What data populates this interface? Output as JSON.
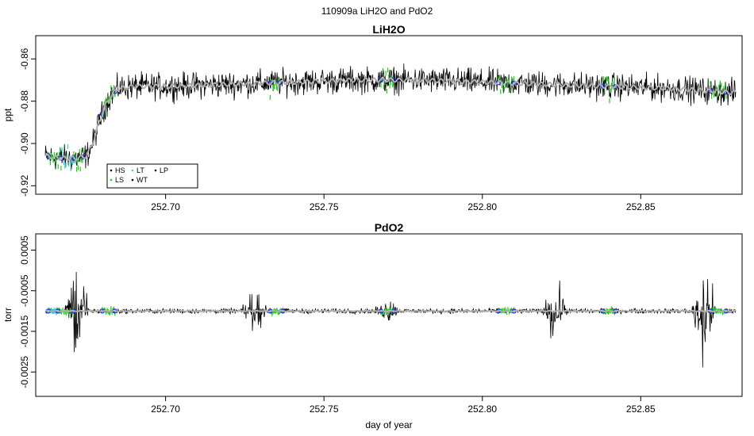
{
  "figure": {
    "title": "110909a   LiH2O and PdO2",
    "xlabel": "day of year"
  },
  "colors": {
    "HS": "#000000",
    "LS": "#22cc22",
    "LT": "#33cccc",
    "WT": "#000000",
    "LP": "#000000",
    "trace": "#000000",
    "smooth": "#b0b0b0",
    "blue_marker": "#2222dd"
  },
  "chart_data": [
    {
      "type": "line",
      "title": "LiH2O",
      "ylabel": "ppt",
      "xlim": [
        252.659,
        252.882
      ],
      "ylim": [
        -0.924,
        -0.849
      ],
      "x_ticks": [
        252.7,
        252.75,
        252.8,
        252.85
      ],
      "x_tick_labels": [
        "252.70",
        "252.75",
        "252.80",
        "252.85"
      ],
      "y_ticks": [
        -0.86,
        -0.88,
        -0.9,
        -0.92
      ],
      "y_tick_labels": [
        "-0.86",
        "-0.88",
        "-0.90",
        "-0.92"
      ],
      "legend": {
        "position": "bottom-left",
        "entries": [
          "HS",
          "LT",
          "LP",
          "LS",
          "WT"
        ]
      },
      "series": [
        {
          "name": "",
          "x": [
            252.662,
            252.667,
            252.672,
            252.675,
            252.677,
            252.679,
            252.681,
            252.683,
            252.685,
            252.69,
            252.7,
            252.72,
            252.74,
            252.76,
            252.77,
            252.78,
            252.8,
            252.82,
            252.84,
            252.86,
            252.87,
            252.88
          ],
          "y": [
            -0.906,
            -0.907,
            -0.907,
            -0.906,
            -0.9,
            -0.89,
            -0.882,
            -0.877,
            -0.874,
            -0.873,
            -0.873,
            -0.872,
            -0.871,
            -0.87,
            -0.87,
            -0.87,
            -0.871,
            -0.872,
            -0.873,
            -0.874,
            -0.875,
            -0.876
          ],
          "noise": 0.006
        }
      ],
      "marker_segments": [
        {
          "label": "LS",
          "x": [
            252.663,
            252.667
          ]
        },
        {
          "label": "LT",
          "x": [
            252.667,
            252.671
          ]
        },
        {
          "label": "LS",
          "x": [
            252.671,
            252.674
          ]
        },
        {
          "label": "LS",
          "x": [
            252.68,
            252.684
          ]
        },
        {
          "label": "LS",
          "x": [
            252.733,
            252.736
          ]
        },
        {
          "label": "LS",
          "x": [
            252.768,
            252.772
          ]
        },
        {
          "label": "LS",
          "x": [
            252.805,
            252.81
          ]
        },
        {
          "label": "LS",
          "x": [
            252.838,
            252.842
          ]
        },
        {
          "label": "LS",
          "x": [
            252.872,
            252.877
          ]
        }
      ]
    },
    {
      "type": "line",
      "title": "PdO2",
      "ylabel": "torr",
      "xlim": [
        252.659,
        252.882
      ],
      "ylim": [
        -0.0031,
        0.0009
      ],
      "x_ticks": [
        252.7,
        252.75,
        252.8,
        252.85
      ],
      "x_tick_labels": [
        "252.70",
        "252.75",
        "252.80",
        "252.85"
      ],
      "y_ticks": [
        0.0005,
        -0.0005,
        -0.0015,
        -0.0025
      ],
      "y_tick_labels": [
        "0.0005",
        "-0.0005",
        "-0.0015",
        "-0.0025"
      ],
      "series": [
        {
          "name": "",
          "x": [
            252.662,
            252.88
          ],
          "y": [
            -0.001,
            -0.001
          ],
          "noise": 6e-05
        }
      ],
      "spikes": [
        {
          "x": 252.672,
          "amp": 0.0018
        },
        {
          "x": 252.728,
          "amp": 0.0007
        },
        {
          "x": 252.77,
          "amp": 0.0004
        },
        {
          "x": 252.823,
          "amp": 0.0011
        },
        {
          "x": 252.87,
          "amp": 0.0016
        }
      ],
      "marker_segments": [
        {
          "label": "LT",
          "x": [
            252.663,
            252.666
          ]
        },
        {
          "label": "LS",
          "x": [
            252.666,
            252.671
          ]
        },
        {
          "label": "LS",
          "x": [
            252.68,
            252.684
          ]
        },
        {
          "label": "LS",
          "x": [
            252.733,
            252.737
          ]
        },
        {
          "label": "LS",
          "x": [
            252.768,
            252.772
          ]
        },
        {
          "label": "LS",
          "x": [
            252.805,
            252.81
          ]
        },
        {
          "label": "LS",
          "x": [
            252.838,
            252.842
          ]
        },
        {
          "label": "LS",
          "x": [
            252.872,
            252.877
          ]
        }
      ]
    }
  ]
}
